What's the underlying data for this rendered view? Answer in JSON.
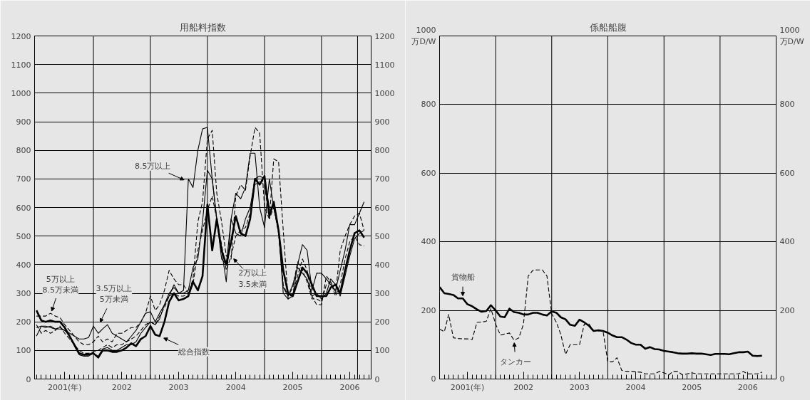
{
  "chart_data": [
    {
      "type": "line",
      "title": "用船料指数",
      "x": [
        "2001-01",
        "2001-02",
        "2001-03",
        "2001-04",
        "2001-05",
        "2001-06",
        "2001-07",
        "2001-08",
        "2001-09",
        "2001-10",
        "2001-11",
        "2001-12",
        "2002-01",
        "2002-02",
        "2002-03",
        "2002-04",
        "2002-05",
        "2002-06",
        "2002-07",
        "2002-08",
        "2002-09",
        "2002-10",
        "2002-11",
        "2002-12",
        "2003-01",
        "2003-02",
        "2003-03",
        "2003-04",
        "2003-05",
        "2003-06",
        "2003-07",
        "2003-08",
        "2003-09",
        "2003-10",
        "2003-11",
        "2003-12",
        "2004-01",
        "2004-02",
        "2004-03",
        "2004-04",
        "2004-05",
        "2004-06",
        "2004-07",
        "2004-08",
        "2004-09",
        "2004-10",
        "2004-11",
        "2004-12",
        "2005-01",
        "2005-02",
        "2005-03",
        "2005-04",
        "2005-05",
        "2005-06",
        "2005-07",
        "2005-08",
        "2005-09",
        "2005-10",
        "2005-11",
        "2005-12",
        "2006-01",
        "2006-02",
        "2006-03",
        "2006-04",
        "2006-05",
        "2006-06",
        "2006-07",
        "2006-08",
        "2006-09",
        "2006-10"
      ],
      "xlim": [
        "2000-12-20",
        "2006-11-15"
      ],
      "xticks": [
        {
          "value": "2001-07",
          "label": "2001(年)"
        },
        {
          "value": "2002-07",
          "label": "2002"
        },
        {
          "value": "2003-07",
          "label": "2003"
        },
        {
          "value": "2004-07",
          "label": "2004"
        },
        {
          "value": "2005-07",
          "label": "2005"
        },
        {
          "value": "2006-07",
          "label": "2006"
        }
      ],
      "ylim": [
        0,
        1200
      ],
      "yticks": [
        0,
        100,
        200,
        300,
        400,
        500,
        600,
        700,
        800,
        900,
        1000,
        1100,
        1200
      ],
      "y2lim": [
        0,
        1200
      ],
      "y2ticks": [
        0,
        100,
        200,
        300,
        400,
        500,
        600,
        700,
        800,
        900,
        1000,
        1100,
        1200
      ],
      "grid": "y",
      "ref_lines": [
        {
          "axis": "x",
          "value": "2002-01"
        },
        {
          "axis": "x",
          "value": "2003-01"
        },
        {
          "axis": "x",
          "value": "2004-01"
        },
        {
          "axis": "x",
          "value": "2005-01"
        },
        {
          "axis": "x",
          "value": "2006-01"
        },
        {
          "axis": "x",
          "value": "2006-08-20"
        }
      ],
      "series": [
        {
          "color": "#000000",
          "line_style": "solid",
          "values": [
            240,
            205,
            200,
            205,
            200,
            200,
            180,
            150,
            120,
            90,
            85,
            85,
            90,
            75,
            100,
            100,
            95,
            95,
            100,
            110,
            125,
            115,
            140,
            150,
            185,
            155,
            150,
            200,
            270,
            300,
            275,
            280,
            290,
            340,
            310,
            360,
            610,
            450,
            560,
            450,
            400,
            480,
            570,
            510,
            500,
            560,
            700,
            680,
            710,
            570,
            620,
            520,
            380,
            300,
            290,
            340,
            390,
            370,
            330,
            290,
            290,
            290,
            320,
            330,
            300,
            380,
            450,
            510,
            520,
            495
          ]
        },
        {
          "color": "#000000",
          "line_style": "solid",
          "values": [
            150,
            185,
            180,
            185,
            175,
            180,
            170,
            150,
            115,
            85,
            80,
            80,
            90,
            80,
            105,
            110,
            100,
            100,
            110,
            120,
            120,
            130,
            160,
            180,
            200,
            190,
            210,
            260,
            300,
            320,
            300,
            310,
            700,
            670,
            800,
            875,
            880,
            700,
            560,
            450,
            340,
            560,
            650,
            630,
            670,
            790,
            790,
            600,
            530,
            700,
            600,
            520,
            300,
            280,
            290,
            400,
            470,
            450,
            310,
            370,
            370,
            350,
            330,
            310,
            380,
            450,
            540,
            540,
            580,
            620
          ]
        },
        {
          "color": "#000000",
          "line_style": "dashed",
          "values": [
            220,
            220,
            220,
            230,
            220,
            215,
            190,
            170,
            150,
            130,
            120,
            120,
            130,
            150,
            130,
            140,
            130,
            160,
            160,
            170,
            180,
            180,
            200,
            230,
            290,
            240,
            260,
            310,
            380,
            350,
            330,
            330,
            300,
            350,
            550,
            620,
            840,
            870,
            650,
            550,
            430,
            420,
            640,
            680,
            660,
            780,
            880,
            860,
            600,
            560,
            770,
            760,
            520,
            280,
            300,
            360,
            420,
            380,
            290,
            260,
            260,
            360,
            340,
            300,
            450,
            500,
            540,
            570,
            580,
            520
          ]
        },
        {
          "color": "#000000",
          "line_style": "solid",
          "values": [
            180,
            185,
            185,
            180,
            175,
            175,
            170,
            160,
            150,
            140,
            140,
            145,
            185,
            160,
            175,
            190,
            160,
            150,
            140,
            130,
            150,
            170,
            200,
            230,
            235,
            200,
            230,
            260,
            290,
            330,
            300,
            300,
            310,
            390,
            420,
            550,
            730,
            700,
            560,
            420,
            400,
            560,
            510,
            500,
            560,
            600,
            700,
            710,
            700,
            600,
            600,
            520,
            320,
            290,
            330,
            390,
            370,
            350,
            290,
            300,
            280,
            300,
            350,
            330,
            290,
            360,
            430,
            490,
            510,
            520
          ]
        },
        {
          "color": "#000000",
          "line_style": "dashed",
          "values": [
            190,
            160,
            170,
            160,
            170,
            185,
            160,
            140,
            120,
            100,
            90,
            90,
            95,
            100,
            110,
            120,
            110,
            120,
            120,
            130,
            140,
            150,
            170,
            190,
            200,
            190,
            220,
            250,
            290,
            300,
            290,
            290,
            300,
            330,
            450,
            520,
            590,
            640,
            560,
            470,
            380,
            430,
            500,
            520,
            530,
            580,
            680,
            690,
            680,
            560,
            600,
            510,
            330,
            290,
            320,
            410,
            380,
            340,
            280,
            280,
            270,
            330,
            340,
            290,
            330,
            420,
            480,
            500,
            470,
            465
          ]
        }
      ],
      "annotations": [
        {
          "text": "5万以上\n8.5万未満",
          "x": "2001-04",
          "y": 225
        },
        {
          "text": "3.5万以上\n5万未満",
          "x": "2002-02",
          "y": 185
        },
        {
          "text": "8.5万以上",
          "x": "2003-09",
          "y": 690
        },
        {
          "text": "2万以上\n3.5未満",
          "x": "2004-06",
          "y": 430
        },
        {
          "text": "総合指数",
          "x": "2003-03",
          "y": 150
        }
      ]
    },
    {
      "type": "line",
      "title": "係船船腹",
      "ylabel": "万D/W",
      "y2label": "万D/W",
      "x": [
        "2001-01",
        "2001-02",
        "2001-03",
        "2001-04",
        "2001-05",
        "2001-06",
        "2001-07",
        "2001-08",
        "2001-09",
        "2001-10",
        "2001-11",
        "2001-12",
        "2002-01",
        "2002-02",
        "2002-03",
        "2002-04",
        "2002-05",
        "2002-06",
        "2002-07",
        "2002-08",
        "2002-09",
        "2002-10",
        "2002-11",
        "2002-12",
        "2003-01",
        "2003-02",
        "2003-03",
        "2003-04",
        "2003-05",
        "2003-06",
        "2003-07",
        "2003-08",
        "2003-09",
        "2003-10",
        "2003-11",
        "2003-12",
        "2004-01",
        "2004-02",
        "2004-03",
        "2004-04",
        "2004-05",
        "2004-06",
        "2004-07",
        "2004-08",
        "2004-09",
        "2004-10",
        "2004-11",
        "2004-12",
        "2005-01",
        "2005-02",
        "2005-03",
        "2005-04",
        "2005-05",
        "2005-06",
        "2005-07",
        "2005-08",
        "2005-09",
        "2005-10",
        "2005-11",
        "2005-12",
        "2006-01",
        "2006-02",
        "2006-03",
        "2006-04",
        "2006-05",
        "2006-06",
        "2006-07",
        "2006-08",
        "2006-09",
        "2006-10"
      ],
      "xlim": [
        "2001-01-01",
        "2007-01-01"
      ],
      "xticks": [
        {
          "value": "2001-07",
          "label": "2001(年)"
        },
        {
          "value": "2002-07",
          "label": "2002"
        },
        {
          "value": "2003-07",
          "label": "2003"
        },
        {
          "value": "2004-07",
          "label": "2004"
        },
        {
          "value": "2005-07",
          "label": "2005"
        },
        {
          "value": "2006-07",
          "label": "2006"
        }
      ],
      "ylim": [
        0,
        1000
      ],
      "yticks": [
        0,
        200,
        400,
        600,
        800,
        1000
      ],
      "y2lim": [
        0,
        1000
      ],
      "y2ticks": [
        0,
        200,
        400,
        600,
        800,
        1000
      ],
      "grid": "y",
      "ref_lines": [
        {
          "axis": "x",
          "value": "2002-01"
        },
        {
          "axis": "x",
          "value": "2003-01"
        },
        {
          "axis": "x",
          "value": "2004-01"
        },
        {
          "axis": "x",
          "value": "2005-01"
        },
        {
          "axis": "x",
          "value": "2006-01"
        }
      ],
      "series": [
        {
          "color": "#000000",
          "line_style": "solid",
          "values": [
            268,
            250,
            248,
            245,
            235,
            235,
            218,
            212,
            203,
            196,
            198,
            215,
            200,
            182,
            180,
            205,
            195,
            193,
            188,
            188,
            193,
            193,
            188,
            185,
            197,
            193,
            180,
            174,
            158,
            155,
            173,
            165,
            155,
            140,
            142,
            140,
            135,
            127,
            122,
            122,
            115,
            105,
            100,
            100,
            88,
            93,
            87,
            86,
            82,
            80,
            78,
            75,
            74,
            74,
            75,
            74,
            74,
            72,
            70,
            73,
            73,
            73,
            72,
            75,
            78,
            78,
            80,
            68,
            67,
            68
          ]
        },
        {
          "color": "#000000",
          "line_style": "dashed",
          "values": [
            145,
            138,
            188,
            120,
            118,
            117,
            117,
            115,
            165,
            166,
            168,
            205,
            160,
            128,
            131,
            134,
            113,
            120,
            160,
            300,
            317,
            318,
            318,
            300,
            190,
            165,
            130,
            72,
            100,
            100,
            100,
            160,
            160,
            140,
            140,
            140,
            50,
            50,
            62,
            25,
            22,
            22,
            21,
            20,
            15,
            15,
            15,
            22,
            18,
            12,
            22,
            22,
            12,
            15,
            18,
            15,
            15,
            15,
            15,
            15,
            15,
            15,
            15,
            15,
            15,
            22,
            15,
            15,
            15,
            20
          ]
        }
      ],
      "annotations": [
        {
          "text": "貨物船",
          "x": "2001-06",
          "y": 235
        },
        {
          "text": "タンカー",
          "x": "2002-05",
          "y": 113
        }
      ]
    }
  ]
}
